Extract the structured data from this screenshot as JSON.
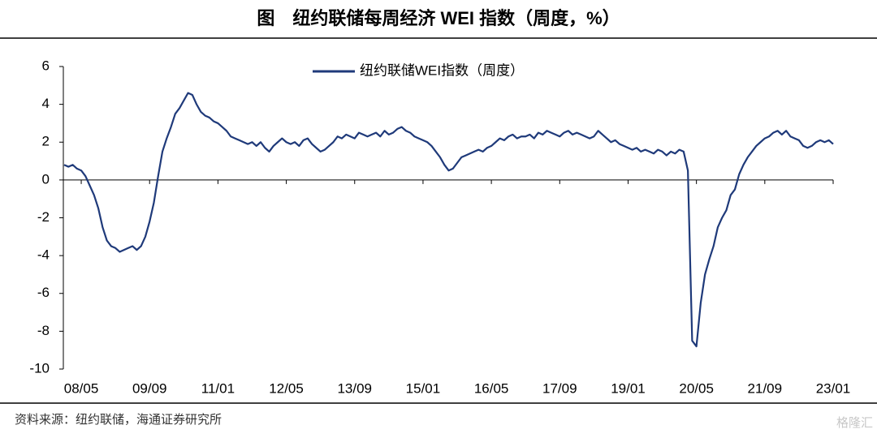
{
  "chart_data": {
    "type": "line",
    "title": "图　纽约联储每周经济 WEI 指数（周度，%）",
    "source": "资料来源：纽约联储，海通证券研究所",
    "watermark": "格隆汇",
    "categories": [
      null,
      null,
      null,
      null,
      "08/05",
      null,
      null,
      null,
      null,
      null,
      null,
      null,
      null,
      null,
      null,
      null,
      null,
      null,
      null,
      null,
      "09/09",
      null,
      null,
      null,
      null,
      null,
      null,
      null,
      null,
      null,
      null,
      null,
      null,
      null,
      null,
      null,
      "11/01",
      null,
      null,
      null,
      null,
      null,
      null,
      null,
      null,
      null,
      null,
      null,
      null,
      null,
      null,
      null,
      "12/05",
      null,
      null,
      null,
      null,
      null,
      null,
      null,
      null,
      null,
      null,
      null,
      null,
      null,
      null,
      null,
      "13/09",
      null,
      null,
      null,
      null,
      null,
      null,
      null,
      null,
      null,
      null,
      null,
      null,
      null,
      null,
      null,
      "15/01",
      null,
      null,
      null,
      null,
      null,
      null,
      null,
      null,
      null,
      null,
      null,
      null,
      null,
      null,
      null,
      "16/05",
      null,
      null,
      null,
      null,
      null,
      null,
      null,
      null,
      null,
      null,
      null,
      null,
      null,
      null,
      null,
      "17/09",
      null,
      null,
      null,
      null,
      null,
      null,
      null,
      null,
      null,
      null,
      null,
      null,
      null,
      null,
      null,
      "19/01",
      null,
      null,
      null,
      null,
      null,
      null,
      null,
      null,
      null,
      null,
      null,
      null,
      null,
      null,
      null,
      "20/05",
      null,
      null,
      null,
      null,
      null,
      null,
      null,
      null,
      null,
      null,
      null,
      null,
      null,
      null,
      null,
      "21/09",
      null,
      null,
      null,
      null,
      null,
      null,
      null,
      null,
      null,
      null,
      null,
      null,
      null,
      null,
      null,
      "23/01"
    ],
    "series": [
      {
        "name": "纽约联储WEI指数（周度）",
        "color": "#1f3a7a",
        "values": [
          0.8,
          0.7,
          0.8,
          0.6,
          0.5,
          0.2,
          -0.3,
          -0.8,
          -1.5,
          -2.5,
          -3.2,
          -3.5,
          -3.6,
          -3.8,
          -3.7,
          -3.6,
          -3.5,
          -3.7,
          -3.5,
          -3.0,
          -2.2,
          -1.2,
          0.2,
          1.5,
          2.2,
          2.8,
          3.5,
          3.8,
          4.2,
          4.6,
          4.5,
          4.0,
          3.6,
          3.4,
          3.3,
          3.1,
          3.0,
          2.8,
          2.6,
          2.3,
          2.2,
          2.1,
          2.0,
          1.9,
          2.0,
          1.8,
          2.0,
          1.7,
          1.5,
          1.8,
          2.0,
          2.2,
          2.0,
          1.9,
          2.0,
          1.8,
          2.1,
          2.2,
          1.9,
          1.7,
          1.5,
          1.6,
          1.8,
          2.0,
          2.3,
          2.2,
          2.4,
          2.3,
          2.2,
          2.5,
          2.4,
          2.3,
          2.4,
          2.5,
          2.3,
          2.6,
          2.4,
          2.5,
          2.7,
          2.8,
          2.6,
          2.5,
          2.3,
          2.2,
          2.1,
          2.0,
          1.8,
          1.5,
          1.2,
          0.8,
          0.5,
          0.6,
          0.9,
          1.2,
          1.3,
          1.4,
          1.5,
          1.6,
          1.5,
          1.7,
          1.8,
          2.0,
          2.2,
          2.1,
          2.3,
          2.4,
          2.2,
          2.3,
          2.3,
          2.4,
          2.2,
          2.5,
          2.4,
          2.6,
          2.5,
          2.4,
          2.3,
          2.5,
          2.6,
          2.4,
          2.5,
          2.4,
          2.3,
          2.2,
          2.3,
          2.6,
          2.4,
          2.2,
          2.0,
          2.1,
          1.9,
          1.8,
          1.7,
          1.6,
          1.7,
          1.5,
          1.6,
          1.5,
          1.4,
          1.6,
          1.5,
          1.3,
          1.5,
          1.4,
          1.6,
          1.5,
          0.5,
          -8.5,
          -8.8,
          -6.5,
          -5.0,
          -4.2,
          -3.5,
          -2.5,
          -2.0,
          -1.6,
          -0.8,
          -0.5,
          0.3,
          0.8,
          1.2,
          1.5,
          1.8,
          2.0,
          2.2,
          2.3,
          2.5,
          2.6,
          2.4,
          2.6,
          2.3,
          2.2,
          2.1,
          1.8,
          1.7,
          1.8,
          2.0,
          2.1,
          2.0,
          2.1,
          1.9
        ]
      }
    ],
    "ylim": [
      -10,
      6
    ],
    "yticks": [
      -10,
      -8,
      -6,
      -4,
      -2,
      0,
      2,
      4,
      6
    ],
    "legend": "top-center",
    "grid": false
  }
}
